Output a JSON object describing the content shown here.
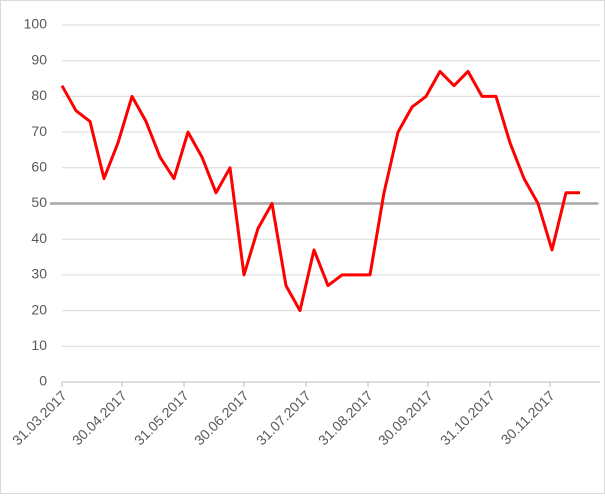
{
  "chart_data": {
    "type": "line",
    "x": [
      "31.03.2017",
      "07.04.2017",
      "14.04.2017",
      "21.04.2017",
      "28.04.2017",
      "05.05.2017",
      "12.05.2017",
      "19.05.2017",
      "26.05.2017",
      "02.06.2017",
      "09.06.2017",
      "16.06.2017",
      "23.06.2017",
      "30.06.2017",
      "07.07.2017",
      "14.07.2017",
      "21.07.2017",
      "28.07.2017",
      "04.08.2017",
      "11.08.2017",
      "18.08.2017",
      "25.08.2017",
      "01.09.2017",
      "08.09.2017",
      "15.09.2017",
      "22.09.2017",
      "29.09.2017",
      "06.10.2017",
      "13.10.2017",
      "20.10.2017",
      "27.10.2017",
      "03.11.2017",
      "10.11.2017",
      "17.11.2017",
      "24.11.2017",
      "01.12.2017",
      "08.12.2017",
      "15.12.2017"
    ],
    "values": [
      83,
      76,
      73,
      57,
      67,
      80,
      73,
      63,
      57,
      70,
      63,
      53,
      60,
      30,
      43,
      50,
      27,
      20,
      37,
      27,
      30,
      30,
      30,
      53,
      70,
      77,
      80,
      87,
      83,
      87,
      80,
      80,
      67,
      57,
      50,
      37,
      53,
      53
    ],
    "color": "#ff0000",
    "reference_line": {
      "value": 50,
      "color": "#a6a6a6"
    },
    "xlim": [
      "31.03.2017",
      "15.12.2017"
    ],
    "xticks": [
      "31.03.2017",
      "30.04.2017",
      "31.05.2017",
      "30.06.2017",
      "31.07.2017",
      "31.08.2017",
      "30.09.2017",
      "31.10.2017",
      "30.11.2017"
    ],
    "ylim": [
      0,
      100
    ],
    "yticks": [
      0,
      10,
      20,
      30,
      40,
      50,
      60,
      70,
      80,
      90,
      100
    ],
    "grid": true
  }
}
